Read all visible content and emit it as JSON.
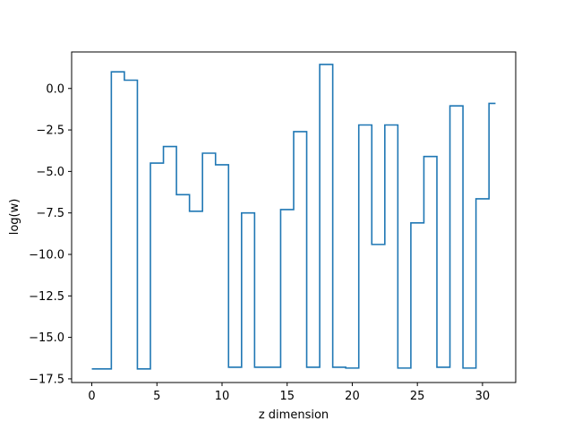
{
  "chart_data": {
    "type": "line",
    "drawstyle": "steps-mid",
    "xlabel": "z dimension",
    "ylabel": "log(w)",
    "xlim": [
      -1.55,
      32.55
    ],
    "ylim": [
      -17.72,
      2.2
    ],
    "xticks": [
      0,
      5,
      10,
      15,
      20,
      25,
      30
    ],
    "yticks": [
      0.0,
      -2.5,
      -5.0,
      -7.5,
      -10.0,
      -12.5,
      -15.0,
      -17.5
    ],
    "xtick_labels": [
      "0",
      "5",
      "10",
      "15",
      "20",
      "25",
      "30"
    ],
    "ytick_labels": [
      "0.0",
      "−2.5",
      "−5.0",
      "−7.5",
      "−10.0",
      "−12.5",
      "−15.0",
      "−17.5"
    ],
    "grid": false,
    "line_color": "#1f77b4",
    "x": [
      0,
      1,
      2,
      3,
      4,
      5,
      6,
      7,
      8,
      9,
      10,
      11,
      12,
      13,
      14,
      15,
      16,
      17,
      18,
      19,
      20,
      21,
      22,
      23,
      24,
      25,
      26,
      27,
      28,
      29,
      30,
      31
    ],
    "y": [
      -16.9,
      -16.9,
      1.0,
      0.5,
      -16.9,
      -4.5,
      -3.5,
      -6.4,
      -7.4,
      -3.9,
      -4.6,
      -16.8,
      -7.5,
      -16.8,
      -16.8,
      -7.3,
      -2.6,
      -16.8,
      1.45,
      -16.8,
      -16.85,
      -2.2,
      -9.4,
      -2.2,
      -16.85,
      -8.1,
      -4.1,
      -16.8,
      -1.05,
      -16.85,
      -6.65,
      -0.9
    ]
  }
}
